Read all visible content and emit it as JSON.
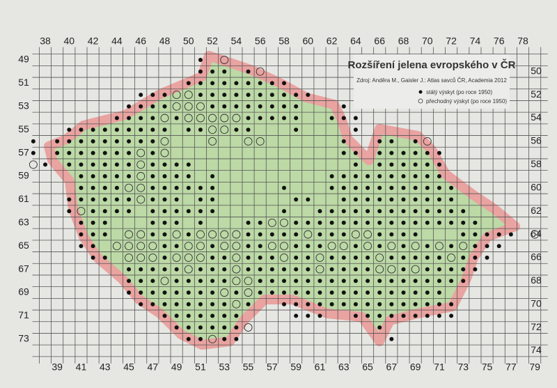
{
  "map": {
    "title": "Rozšíření jelena evropského v ČR",
    "source": "Zdroj: Anděra M., Gaisler J.: Atlas savců ČR, Academia 2012",
    "legend": [
      {
        "label": "stálý výskyt (po roce 1950)"
      },
      {
        "label": "přechodný výskyt (po roce 1950)"
      }
    ],
    "axes": {
      "top": [
        38,
        40,
        42,
        44,
        46,
        48,
        50,
        52,
        54,
        56,
        58,
        60,
        62,
        64,
        66,
        68,
        70,
        72,
        74,
        76,
        78
      ],
      "bottom": [
        39,
        41,
        43,
        45,
        47,
        49,
        51,
        53,
        55,
        57,
        59,
        61,
        63,
        65,
        67,
        69,
        71,
        73,
        75,
        77,
        79
      ],
      "left": [
        49,
        51,
        53,
        55,
        57,
        59,
        61,
        63,
        65,
        67,
        69,
        71,
        73
      ],
      "right": [
        50,
        52,
        54,
        56,
        58,
        60,
        62,
        64,
        66,
        68,
        70,
        72,
        74
      ]
    },
    "cells": [
      {
        "row": 49,
        "permanent": [
          51
        ],
        "transient": [
          53
        ]
      },
      {
        "row": 50,
        "permanent": [
          51,
          52,
          53,
          55
        ],
        "transient": [
          56
        ]
      },
      {
        "row": 51,
        "permanent": [
          50,
          51,
          52,
          53,
          54,
          55,
          56,
          57,
          58
        ],
        "transient": []
      },
      {
        "row": 52,
        "permanent": [
          46,
          47,
          48,
          51,
          52,
          53,
          54,
          55,
          56,
          57,
          58,
          59,
          60
        ],
        "transient": [
          49,
          50
        ]
      },
      {
        "row": 53,
        "permanent": [
          45,
          46,
          47,
          48,
          52,
          53,
          54,
          55,
          56,
          57,
          58,
          59,
          63,
          64
        ],
        "transient": [
          49,
          50,
          51
        ]
      },
      {
        "row": 54,
        "permanent": [
          44,
          45,
          46,
          47,
          49,
          55,
          56,
          57,
          58,
          59,
          62,
          63,
          64
        ],
        "transient": [
          48,
          50,
          51,
          52,
          53,
          54
        ]
      },
      {
        "row": 55,
        "permanent": [
          40,
          41,
          42,
          43,
          44,
          45,
          46,
          47,
          48,
          50,
          51,
          54,
          55,
          59,
          64
        ],
        "transient": [
          52,
          53
        ]
      },
      {
        "row": 56,
        "permanent": [
          37,
          39,
          40,
          41,
          42,
          43,
          44,
          45,
          46,
          47,
          63,
          66,
          67,
          69
        ],
        "transient": [
          48,
          52,
          55,
          56,
          70
        ]
      },
      {
        "row": 57,
        "permanent": [
          37,
          39,
          40,
          41,
          42,
          43,
          44,
          45,
          47,
          63,
          64,
          66,
          67,
          68,
          69,
          70,
          71
        ],
        "transient": [
          46,
          48
        ]
      },
      {
        "row": 58,
        "permanent": [
          38,
          40,
          41,
          42,
          43,
          44,
          45,
          47,
          48,
          49,
          50,
          64,
          66,
          67,
          68,
          69,
          70,
          71
        ],
        "transient": [
          37,
          46
        ]
      },
      {
        "row": 59,
        "permanent": [
          41,
          42,
          43,
          44,
          45,
          47,
          48,
          49,
          50,
          52,
          62,
          63,
          64,
          65,
          66,
          67,
          68,
          69,
          70,
          71
        ],
        "transient": [
          46
        ]
      },
      {
        "row": 60,
        "permanent": [
          41,
          42,
          43,
          44,
          47,
          48,
          49,
          50,
          51,
          52,
          58,
          62,
          63,
          64,
          65,
          66,
          67,
          68,
          69,
          70,
          71,
          72
        ],
        "transient": [
          45,
          46
        ]
      },
      {
        "row": 61,
        "permanent": [
          40,
          41,
          42,
          43,
          44,
          45,
          47,
          48,
          49,
          51,
          52,
          59,
          60,
          63,
          64,
          65,
          66,
          67,
          68,
          69,
          70,
          71,
          72
        ],
        "transient": [
          46
        ]
      },
      {
        "row": 62,
        "permanent": [
          40,
          42,
          43,
          44,
          45,
          47,
          48,
          49,
          50,
          51,
          52,
          58,
          61,
          62,
          63,
          64,
          65,
          66,
          67,
          68,
          69,
          70,
          71,
          72,
          73
        ],
        "transient": [
          41
        ]
      },
      {
        "row": 63,
        "permanent": [
          41,
          42,
          43,
          47,
          48,
          49,
          51,
          55,
          56,
          59,
          60,
          61,
          62,
          63,
          64,
          65,
          66,
          67,
          68,
          69,
          70,
          71,
          72,
          73,
          74
        ],
        "transient": [
          57,
          58
        ]
      },
      {
        "row": 64,
        "permanent": [
          41,
          42,
          43,
          47,
          48,
          50,
          55,
          56,
          57,
          58,
          59,
          61,
          62,
          63,
          66,
          67,
          68,
          69,
          73,
          74,
          75,
          76,
          77
        ],
        "transient": [
          45,
          46,
          49,
          51,
          52,
          53,
          54,
          60,
          64,
          65,
          79
        ]
      },
      {
        "row": 65,
        "permanent": [
          41,
          42,
          48,
          49,
          52,
          55,
          56,
          59,
          60,
          61,
          64,
          66,
          68,
          70,
          72,
          74,
          75,
          76
        ],
        "transient": [
          44,
          45,
          46,
          47,
          50,
          51,
          53,
          54,
          57,
          58,
          62,
          63,
          65,
          67,
          69,
          71,
          73
        ]
      },
      {
        "row": 66,
        "permanent": [
          42,
          43,
          48,
          52,
          53,
          55,
          56,
          57,
          59,
          60,
          62,
          63,
          64,
          65,
          67,
          68,
          69,
          70,
          71,
          73,
          74,
          75
        ],
        "transient": [
          45,
          46,
          47,
          49,
          50,
          51,
          54,
          58,
          61,
          66,
          72
        ]
      },
      {
        "row": 67,
        "permanent": [
          45,
          46,
          47,
          48,
          49,
          51,
          52,
          53,
          55,
          56,
          57,
          58,
          59,
          60,
          62,
          63,
          64,
          65,
          68,
          70,
          71,
          72,
          73,
          74
        ],
        "transient": [
          50,
          54,
          61,
          66,
          67,
          69
        ]
      },
      {
        "row": 68,
        "permanent": [
          45,
          46,
          47,
          49,
          50,
          51,
          52,
          53,
          56,
          57,
          58,
          59,
          60,
          61,
          62,
          63,
          64,
          65,
          66,
          67,
          68,
          69,
          70,
          71,
          72,
          73
        ],
        "transient": [
          48,
          54,
          55
        ]
      },
      {
        "row": 69,
        "permanent": [
          45,
          46,
          47,
          48,
          49,
          50,
          51,
          52,
          54,
          56,
          57,
          58,
          59,
          60,
          61,
          62,
          63,
          64,
          65,
          66,
          67,
          68,
          69,
          70,
          71
        ],
        "transient": [
          53,
          55
        ]
      },
      {
        "row": 70,
        "permanent": [
          46,
          47,
          48,
          49,
          50,
          51,
          52,
          53,
          55,
          58,
          59,
          60,
          61,
          62,
          63,
          64,
          65,
          66,
          67,
          68,
          69,
          70,
          71,
          72
        ],
        "transient": [
          54
        ]
      },
      {
        "row": 71,
        "permanent": [
          48,
          49,
          50,
          51,
          52,
          53,
          54,
          59,
          60,
          61,
          64,
          65,
          66,
          67,
          68,
          69,
          70,
          71,
          72
        ],
        "transient": []
      },
      {
        "row": 72,
        "permanent": [
          49,
          50,
          51,
          52,
          53,
          54,
          66
        ],
        "transient": [
          55
        ]
      },
      {
        "row": 73,
        "permanent": [
          50,
          51,
          53,
          54,
          67
        ],
        "transient": [
          52
        ]
      }
    ]
  }
}
